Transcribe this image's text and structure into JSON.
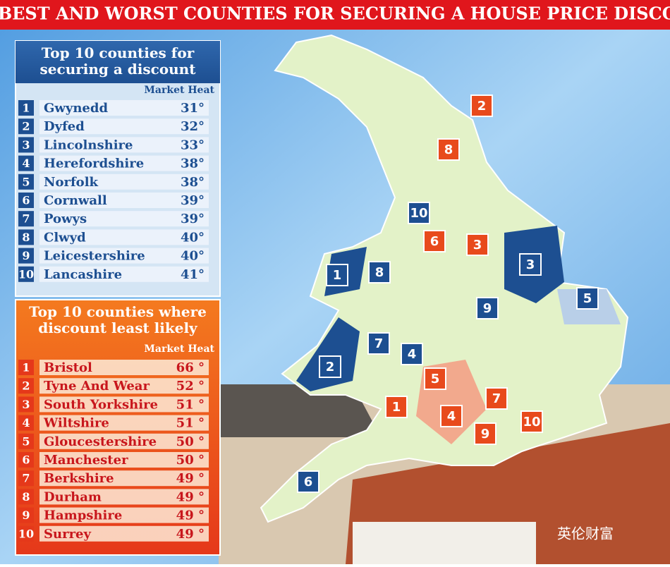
{
  "header": {
    "title": "THE BEST AND WORST COUNTIES FOR SECURING A HOUSE PRICE DISCOUNT"
  },
  "best": {
    "title": "Top 10 counties for securing a discount",
    "column": "Market Heat",
    "rows": [
      [
        "1",
        "Gwynedd",
        "31°"
      ],
      [
        "2",
        "Dyfed",
        "32°"
      ],
      [
        "3",
        "Lincolnshire",
        "33°"
      ],
      [
        "4",
        "Herefordshire",
        "38°"
      ],
      [
        "5",
        "Norfolk",
        "38°"
      ],
      [
        "6",
        "Cornwall",
        "39°"
      ],
      [
        "7",
        "Powys",
        "39°"
      ],
      [
        "8",
        "Clwyd",
        "40°"
      ],
      [
        "9",
        "Leicestershire",
        "40°"
      ],
      [
        "10",
        "Lancashire",
        "41°"
      ]
    ]
  },
  "worst": {
    "title": "Top 10 counties where discount least likely",
    "column": "Market Heat",
    "rows": [
      [
        "1",
        "Bristol",
        "66 °"
      ],
      [
        "2",
        "Tyne And Wear",
        "52 °"
      ],
      [
        "3",
        "South Yorkshire",
        "51 °"
      ],
      [
        "4",
        "Wiltshire",
        "51 °"
      ],
      [
        "5",
        "Gloucestershire",
        "50 °"
      ],
      [
        "6",
        "Manchester",
        "50 °"
      ],
      [
        "7",
        "Berkshire",
        "49 °"
      ],
      [
        "8",
        "Durham",
        "49 °"
      ],
      [
        "9",
        "Hampshire",
        "49 °"
      ],
      [
        "10",
        "Surrey",
        "49 °"
      ]
    ]
  },
  "map": {
    "markers": [
      {
        "label": "1",
        "color": "#1d4f91"
      },
      {
        "label": "2",
        "color": "#1d4f91"
      },
      {
        "label": "3",
        "color": "#1d4f91"
      },
      {
        "label": "4",
        "color": "#1d4f91"
      },
      {
        "label": "5",
        "color": "#1d4f91"
      },
      {
        "label": "6",
        "color": "#1d4f91"
      },
      {
        "label": "7",
        "color": "#1d4f91"
      },
      {
        "label": "8",
        "color": "#1d4f91"
      },
      {
        "label": "9",
        "color": "#1d4f91"
      },
      {
        "label": "10",
        "color": "#1d4f91"
      },
      {
        "label": "1",
        "color": "#e84a1c"
      },
      {
        "label": "2",
        "color": "#e84a1c"
      },
      {
        "label": "3",
        "color": "#e84a1c"
      },
      {
        "label": "4",
        "color": "#e84a1c"
      },
      {
        "label": "5",
        "color": "#e84a1c"
      },
      {
        "label": "6",
        "color": "#e84a1c"
      },
      {
        "label": "7",
        "color": "#e84a1c"
      },
      {
        "label": "8",
        "color": "#e84a1c"
      },
      {
        "label": "9",
        "color": "#e84a1c"
      },
      {
        "label": "10",
        "color": "#e84a1c"
      }
    ]
  },
  "watermark": "英伦财富"
}
